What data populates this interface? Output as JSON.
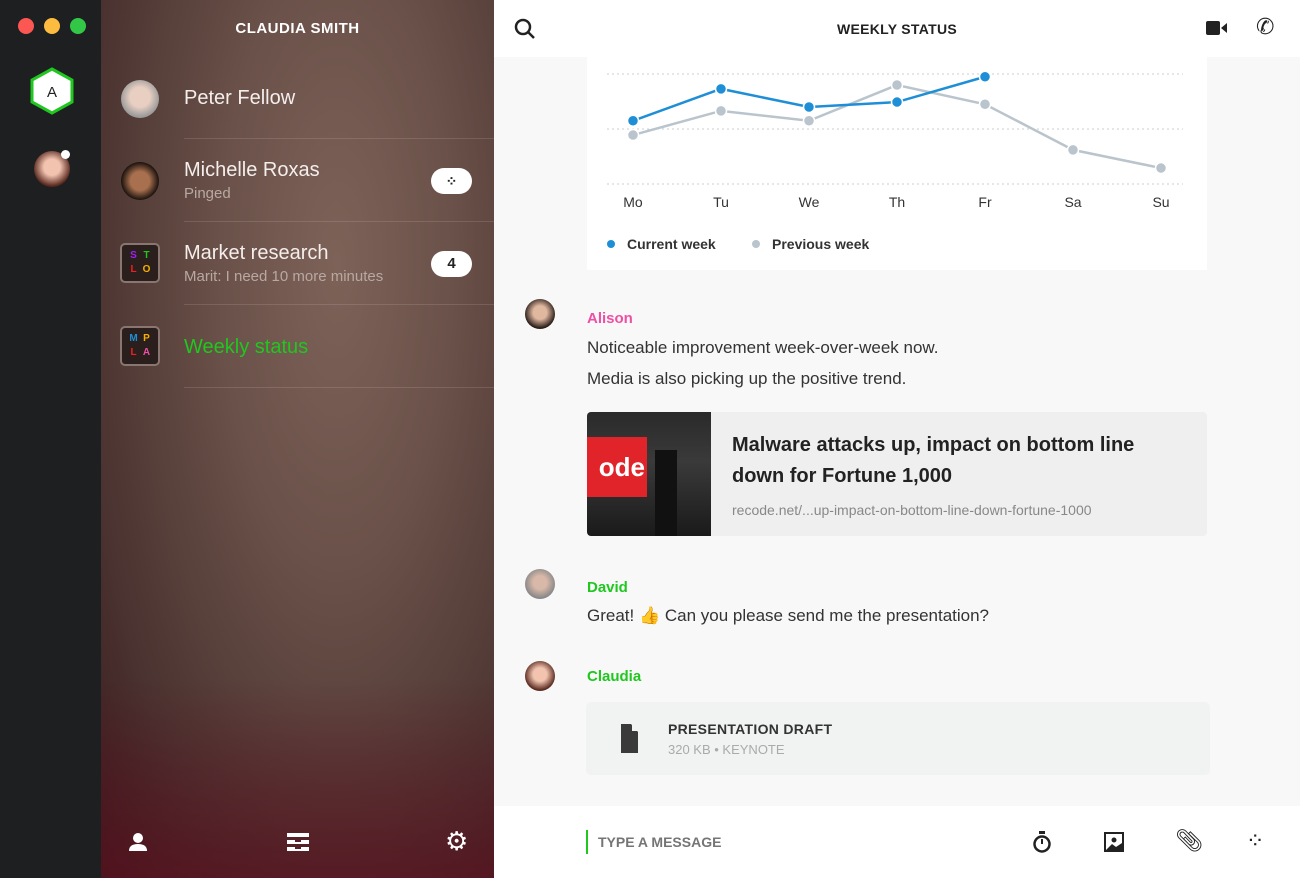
{
  "window": {
    "controls": [
      {
        "name": "close",
        "color": "#fc5753"
      },
      {
        "name": "minimize",
        "color": "#fdbc40"
      },
      {
        "name": "maximize",
        "color": "#33c748"
      }
    ]
  },
  "rail": {
    "workspace_initial": "A",
    "accent": "#1fc71f"
  },
  "sidebar": {
    "user_name": "CLAUDIA SMITH",
    "conversations": [
      {
        "name": "Peter Fellow",
        "subtitle": ""
      },
      {
        "name": "Michelle Roxas",
        "subtitle": "Pinged",
        "badge_icon": "ping-icon"
      },
      {
        "name": "Market research",
        "subtitle": "Marit: I need 10 more minutes",
        "badge": "4",
        "group_letters": [
          "S",
          "T",
          "L",
          "O"
        ]
      },
      {
        "name": "Weekly status",
        "subtitle": "",
        "active": true,
        "group_letters": [
          "M",
          "P",
          "L",
          "A"
        ]
      }
    ],
    "footer_icons": [
      "profile-icon",
      "archive-icon",
      "gear-icon"
    ]
  },
  "header": {
    "title": "WEEKLY STATUS",
    "icons": [
      "search-icon",
      "video-icon",
      "phone-icon"
    ]
  },
  "chart_data": {
    "type": "line",
    "categories": [
      "Mo",
      "Tu",
      "We",
      "Th",
      "Fr",
      "Sa",
      "Su"
    ],
    "ylim": [
      0,
      2
    ],
    "grid": true,
    "legend": "bottom-left",
    "series": [
      {
        "name": "Current week",
        "color": "#1e8fd6",
        "values": [
          1.15,
          1.73,
          1.4,
          1.49,
          1.95,
          null,
          null
        ]
      },
      {
        "name": "Previous week",
        "color": "#b9c4cd",
        "values": [
          0.89,
          1.33,
          1.15,
          1.8,
          1.45,
          0.62,
          0.29
        ]
      }
    ]
  },
  "messages": [
    {
      "sender": "Alison",
      "color": "#ee4fa5",
      "lines": [
        "Noticeable improvement week-over-week now.",
        "Media is also picking up the positive trend."
      ],
      "link": {
        "title": "Malware attacks up, impact on bottom line down for Fortune 1,000",
        "url": "recode.net/...up-impact-on-bottom-line-down-fortune-1000",
        "thumb_text": "ode"
      }
    },
    {
      "sender": "David",
      "color": "#1fc71f",
      "text": "Great! 👍 Can you please send me the presentation?"
    },
    {
      "sender": "Claudia",
      "color": "#1fc71f",
      "file": {
        "name": "PRESENTATION DRAFT",
        "meta": "320 KB • KEYNOTE"
      }
    }
  ],
  "composer": {
    "placeholder": "TYPE A MESSAGE",
    "icons": [
      "timer-icon",
      "image-icon",
      "attachment-icon",
      "ping-icon"
    ]
  }
}
